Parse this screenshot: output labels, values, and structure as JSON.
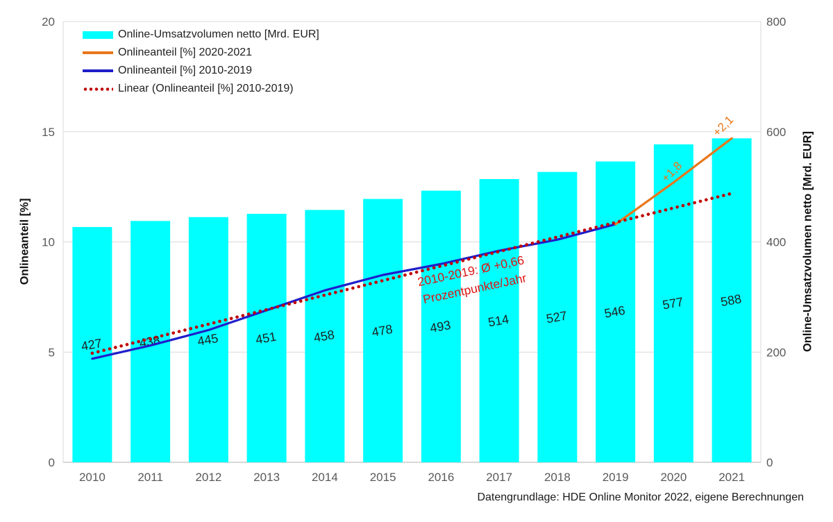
{
  "chart_data": {
    "type": "bar+line",
    "categories": [
      "2010",
      "2011",
      "2012",
      "2013",
      "2014",
      "2015",
      "2016",
      "2017",
      "2018",
      "2019",
      "2020",
      "2021"
    ],
    "bars": {
      "name": "Online-Umsatzvolumen netto [Mrd. EUR]",
      "color": "#00FFFF",
      "axis": "right",
      "values": [
        427,
        438,
        445,
        451,
        458,
        478,
        493,
        514,
        527,
        546,
        577,
        588
      ]
    },
    "lines": [
      {
        "name": "Onlineanteil [%] 2010-2019",
        "color": "#1E1ECB",
        "style": "solid",
        "axis": "left",
        "x": [
          "2010",
          "2011",
          "2012",
          "2013",
          "2014",
          "2015",
          "2016",
          "2017",
          "2018",
          "2019"
        ],
        "y": [
          4.7,
          5.3,
          6.0,
          6.9,
          7.8,
          8.5,
          9.0,
          9.6,
          10.1,
          10.8
        ]
      },
      {
        "name": "Onlineanteil [%] 2020-2021",
        "color": "#E8771A",
        "style": "solid",
        "axis": "left",
        "x": [
          "2019",
          "2020",
          "2021"
        ],
        "y": [
          10.8,
          12.7,
          14.7
        ]
      },
      {
        "name": "Linear (Onlineanteil [%] 2010-2019)",
        "color": "#C00000",
        "style": "dotted",
        "axis": "left",
        "x": [
          "2010",
          "2021"
        ],
        "y": [
          4.95,
          12.2
        ]
      }
    ],
    "axes": {
      "left": {
        "title": "Onlineanteil [%]",
        "min": 0,
        "max": 20,
        "ticks": [
          0,
          5,
          10,
          15,
          20
        ]
      },
      "right": {
        "title": "Online-Umsatzvolumen netto [Mrd. EUR]",
        "min": 0,
        "max": 800,
        "ticks": [
          0,
          200,
          400,
          600,
          800
        ]
      }
    },
    "grid": true,
    "legend": {
      "position": "top-left",
      "items": [
        {
          "label": "Online-Umsatzvolumen netto [Mrd. EUR]",
          "swatch": "bar",
          "color": "#00FFFF"
        },
        {
          "label": "Onlineanteil [%] 2020-2021",
          "swatch": "line",
          "color": "#E8771A"
        },
        {
          "label": "Onlineanteil [%] 2010-2019",
          "swatch": "line",
          "color": "#1E1ECB"
        },
        {
          "label": "Linear (Onlineanteil [%] 2010-2019)",
          "swatch": "dots",
          "color": "#C00000"
        }
      ]
    },
    "annotations": {
      "trend_note": {
        "line1": "2010-2019: Ø +0,66",
        "line2": "Prozentpunkte/Jahr",
        "color": "#E01414"
      },
      "delta_2020": {
        "text": "+1,8",
        "color": "#E8771A"
      },
      "delta_2021": {
        "text": "+2,1",
        "color": "#E8771A"
      }
    },
    "source": "Datengrundlage: HDE Online Monitor 2022, eigene Berechnungen",
    "style_colors": {
      "grid": "#D9D9D9",
      "axis_line": "#BFBFBF",
      "tick_text": "#595959",
      "bar_label_text": "#1F1F1F"
    }
  }
}
